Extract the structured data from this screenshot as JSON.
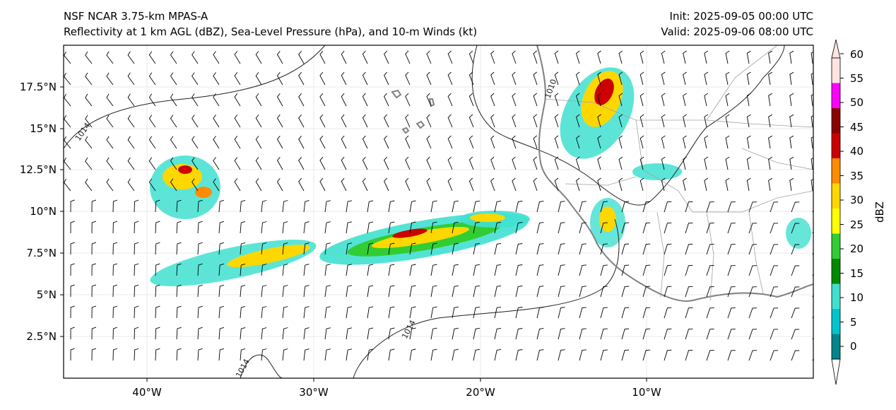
{
  "header": {
    "title_line1": "NSF NCAR 3.75-km MPAS-A",
    "title_line2": "Reflectivity at 1 km AGL (dBZ), Sea-Level Pressure (hPa), and 10-m Winds (kt)",
    "init": "Init: 2025-09-05 00:00 UTC",
    "valid": "Valid: 2025-09-06 08:00 UTC"
  },
  "map": {
    "lon_range": [
      -45,
      0
    ],
    "lat_range": [
      0,
      20
    ],
    "lon_ticks": [
      "40°W",
      "30°W",
      "20°W",
      "10°W"
    ],
    "lat_ticks": [
      "2.5°N",
      "5°N",
      "7.5°N",
      "10°N",
      "12.5°N",
      "15°N",
      "17.5°N"
    ],
    "contour_labels": [
      "1014",
      "1010",
      "1014",
      "1014"
    ],
    "colors": {
      "coast": "#808080",
      "border": "#a0a0a0",
      "isobar": "#202020"
    }
  },
  "colorbar": {
    "label": "dBZ",
    "ticks": [
      "0",
      "5",
      "10",
      "15",
      "20",
      "25",
      "30",
      "35",
      "40",
      "45",
      "50",
      "55",
      "60"
    ],
    "colors": [
      "#00868b",
      "#00c5cd",
      "#40e0d0",
      "#008b00",
      "#32cd32",
      "#ffff00",
      "#ffd700",
      "#ff8c00",
      "#cd0000",
      "#8b0000",
      "#ff00ff",
      "#ffe4e1"
    ]
  }
}
